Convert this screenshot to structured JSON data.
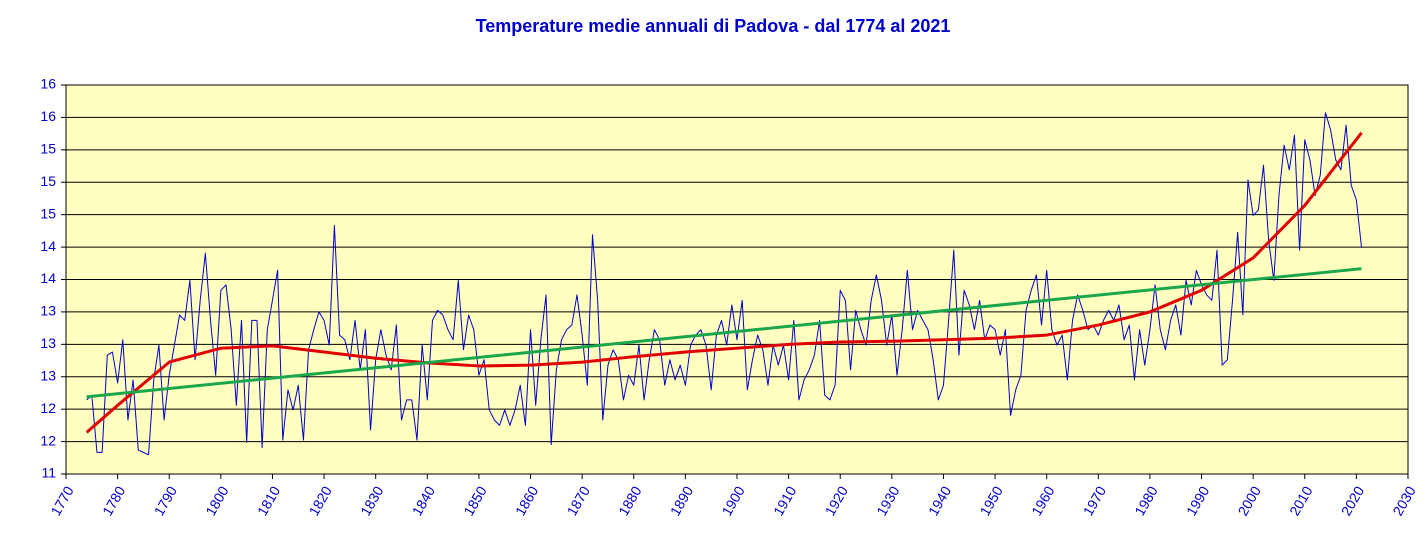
{
  "chart_data": {
    "type": "line",
    "title": "Temperature medie annuali di Padova - dal 1774 al 2021",
    "x": [
      1774,
      1775,
      1776,
      1777,
      1778,
      1779,
      1780,
      1781,
      1782,
      1783,
      1784,
      1785,
      1786,
      1787,
      1788,
      1789,
      1790,
      1791,
      1792,
      1793,
      1794,
      1795,
      1796,
      1797,
      1798,
      1799,
      1800,
      1801,
      1802,
      1803,
      1804,
      1805,
      1806,
      1807,
      1808,
      1809,
      1810,
      1811,
      1812,
      1813,
      1814,
      1815,
      1816,
      1817,
      1818,
      1819,
      1820,
      1821,
      1822,
      1823,
      1824,
      1825,
      1826,
      1827,
      1828,
      1829,
      1830,
      1831,
      1832,
      1833,
      1834,
      1835,
      1836,
      1837,
      1838,
      1839,
      1840,
      1841,
      1842,
      1843,
      1844,
      1845,
      1846,
      1847,
      1848,
      1849,
      1850,
      1851,
      1852,
      1853,
      1854,
      1855,
      1856,
      1857,
      1858,
      1859,
      1860,
      1861,
      1862,
      1863,
      1864,
      1865,
      1866,
      1867,
      1868,
      1869,
      1870,
      1871,
      1872,
      1873,
      1874,
      1875,
      1876,
      1877,
      1878,
      1879,
      1880,
      1881,
      1882,
      1883,
      1884,
      1885,
      1886,
      1887,
      1888,
      1889,
      1890,
      1891,
      1892,
      1893,
      1894,
      1895,
      1896,
      1897,
      1898,
      1899,
      1900,
      1901,
      1902,
      1903,
      1904,
      1905,
      1906,
      1907,
      1908,
      1909,
      1910,
      1911,
      1912,
      1913,
      1914,
      1915,
      1916,
      1917,
      1918,
      1919,
      1920,
      1921,
      1922,
      1923,
      1924,
      1925,
      1926,
      1927,
      1928,
      1929,
      1930,
      1931,
      1932,
      1933,
      1934,
      1935,
      1936,
      1937,
      1938,
      1939,
      1940,
      1941,
      1942,
      1943,
      1944,
      1945,
      1946,
      1947,
      1948,
      1949,
      1950,
      1951,
      1952,
      1953,
      1954,
      1955,
      1956,
      1957,
      1958,
      1959,
      1960,
      1961,
      1962,
      1963,
      1964,
      1965,
      1966,
      1967,
      1968,
      1969,
      1970,
      1971,
      1972,
      1973,
      1974,
      1975,
      1976,
      1977,
      1978,
      1979,
      1980,
      1981,
      1982,
      1983,
      1984,
      1985,
      1986,
      1987,
      1988,
      1989,
      1990,
      1991,
      1992,
      1993,
      1994,
      1995,
      1996,
      1997,
      1998,
      1999,
      2000,
      2001,
      2002,
      2003,
      2004,
      2005,
      2006,
      2007,
      2008,
      2009,
      2010,
      2011,
      2012,
      2013,
      2014,
      2015,
      2016,
      2017,
      2018,
      2019,
      2020,
      2021
    ],
    "series": [
      {
        "color": "#0000cc",
        "values": [
          12.21,
          12.27,
          11.53,
          11.53,
          12.79,
          12.83,
          12.43,
          12.99,
          11.95,
          12.47,
          11.56,
          11.53,
          11.5,
          12.47,
          12.92,
          11.95,
          12.53,
          12.92,
          13.31,
          13.24,
          13.76,
          12.73,
          13.5,
          14.11,
          13.24,
          12.53,
          13.63,
          13.7,
          13.12,
          12.14,
          13.24,
          11.66,
          13.24,
          13.24,
          11.59,
          13.12,
          13.5,
          13.89,
          11.69,
          12.34,
          12.08,
          12.4,
          11.69,
          12.86,
          13.12,
          13.35,
          13.24,
          12.92,
          14.47,
          13.05,
          12.99,
          12.73,
          13.24,
          12.6,
          13.12,
          11.82,
          12.73,
          13.12,
          12.79,
          12.6,
          13.18,
          11.95,
          12.21,
          12.21,
          11.69,
          12.92,
          12.21,
          13.24,
          13.37,
          13.31,
          13.12,
          12.99,
          13.76,
          12.86,
          13.31,
          13.12,
          12.53,
          12.73,
          12.08,
          11.95,
          11.88,
          12.08,
          11.88,
          12.08,
          12.4,
          11.88,
          13.12,
          12.14,
          12.99,
          13.57,
          11.63,
          12.6,
          12.99,
          13.12,
          13.18,
          13.57,
          13.05,
          12.4,
          14.35,
          13.5,
          11.95,
          12.66,
          12.86,
          12.73,
          12.21,
          12.53,
          12.4,
          12.92,
          12.21,
          12.73,
          13.12,
          12.99,
          12.4,
          12.73,
          12.47,
          12.66,
          12.4,
          12.92,
          13.05,
          13.12,
          12.92,
          12.34,
          13.05,
          13.24,
          12.92,
          13.44,
          12.99,
          13.5,
          12.34,
          12.73,
          13.05,
          12.86,
          12.4,
          12.92,
          12.66,
          12.92,
          12.47,
          13.24,
          12.21,
          12.47,
          12.6,
          12.79,
          13.24,
          12.27,
          12.21,
          12.4,
          13.63,
          13.5,
          12.6,
          13.37,
          13.12,
          12.92,
          13.5,
          13.83,
          13.5,
          12.92,
          13.31,
          12.53,
          13.12,
          13.89,
          13.12,
          13.37,
          13.24,
          13.12,
          12.73,
          12.21,
          12.4,
          13.24,
          14.15,
          12.79,
          13.63,
          13.44,
          13.12,
          13.5,
          12.99,
          13.18,
          13.12,
          12.79,
          13.12,
          12.01,
          12.34,
          12.53,
          13.37,
          13.63,
          13.83,
          13.18,
          13.89,
          13.12,
          12.92,
          13.05,
          12.47,
          13.24,
          13.57,
          13.37,
          13.12,
          13.18,
          13.05,
          13.24,
          13.37,
          13.24,
          13.44,
          12.99,
          13.18,
          12.47,
          13.12,
          12.66,
          13.12,
          13.7,
          13.12,
          12.86,
          13.24,
          13.44,
          13.05,
          13.76,
          13.44,
          13.89,
          13.7,
          13.57,
          13.5,
          14.15,
          12.66,
          12.73,
          13.5,
          14.38,
          13.31,
          15.06,
          14.6,
          14.67,
          15.25,
          14.28,
          13.76,
          14.86,
          15.51,
          15.19,
          15.64,
          14.15,
          15.58,
          15.32,
          14.86,
          15.12,
          15.93,
          15.71,
          15.32,
          15.19,
          15.77,
          14.99,
          14.8,
          14.18
        ]
      },
      {
        "color": "#e00000",
        "x": [
          1774,
          1780,
          1790,
          1800,
          1810,
          1820,
          1830,
          1840,
          1850,
          1860,
          1870,
          1880,
          1890,
          1900,
          1910,
          1920,
          1930,
          1940,
          1950,
          1960,
          1970,
          1980,
          1990,
          2000,
          2010,
          2021
        ],
        "values": [
          11.79,
          12.14,
          12.7,
          12.88,
          12.91,
          12.83,
          12.75,
          12.69,
          12.65,
          12.66,
          12.7,
          12.77,
          12.83,
          12.88,
          12.93,
          12.96,
          12.97,
          12.99,
          13.01,
          13.05,
          13.18,
          13.35,
          13.63,
          14.05,
          14.73,
          15.67
        ]
      },
      {
        "color": "#1aa64a",
        "x": [
          1774,
          2021
        ],
        "values": [
          12.25,
          13.91
        ]
      }
    ],
    "xlim": [
      1770,
      2030
    ],
    "xticks": [
      1770,
      1780,
      1790,
      1800,
      1810,
      1820,
      1830,
      1840,
      1850,
      1860,
      1870,
      1880,
      1890,
      1900,
      1910,
      1920,
      1930,
      1940,
      1950,
      1960,
      1970,
      1980,
      1990,
      2000,
      2010,
      2020,
      2030
    ],
    "ylim": [
      11.25,
      16.29
    ],
    "yticks": [
      {
        "value": 11.25,
        "label": "11"
      },
      {
        "value": 11.67,
        "label": "12"
      },
      {
        "value": 12.09,
        "label": "12"
      },
      {
        "value": 12.51,
        "label": "13"
      },
      {
        "value": 12.93,
        "label": "13"
      },
      {
        "value": 13.35,
        "label": "13"
      },
      {
        "value": 13.77,
        "label": "14"
      },
      {
        "value": 14.19,
        "label": "14"
      },
      {
        "value": 14.61,
        "label": "15"
      },
      {
        "value": 15.03,
        "label": "15"
      },
      {
        "value": 15.45,
        "label": "15"
      },
      {
        "value": 15.87,
        "label": "16"
      },
      {
        "value": 16.29,
        "label": "16"
      }
    ],
    "grid": true,
    "background": "#ffffc0"
  }
}
